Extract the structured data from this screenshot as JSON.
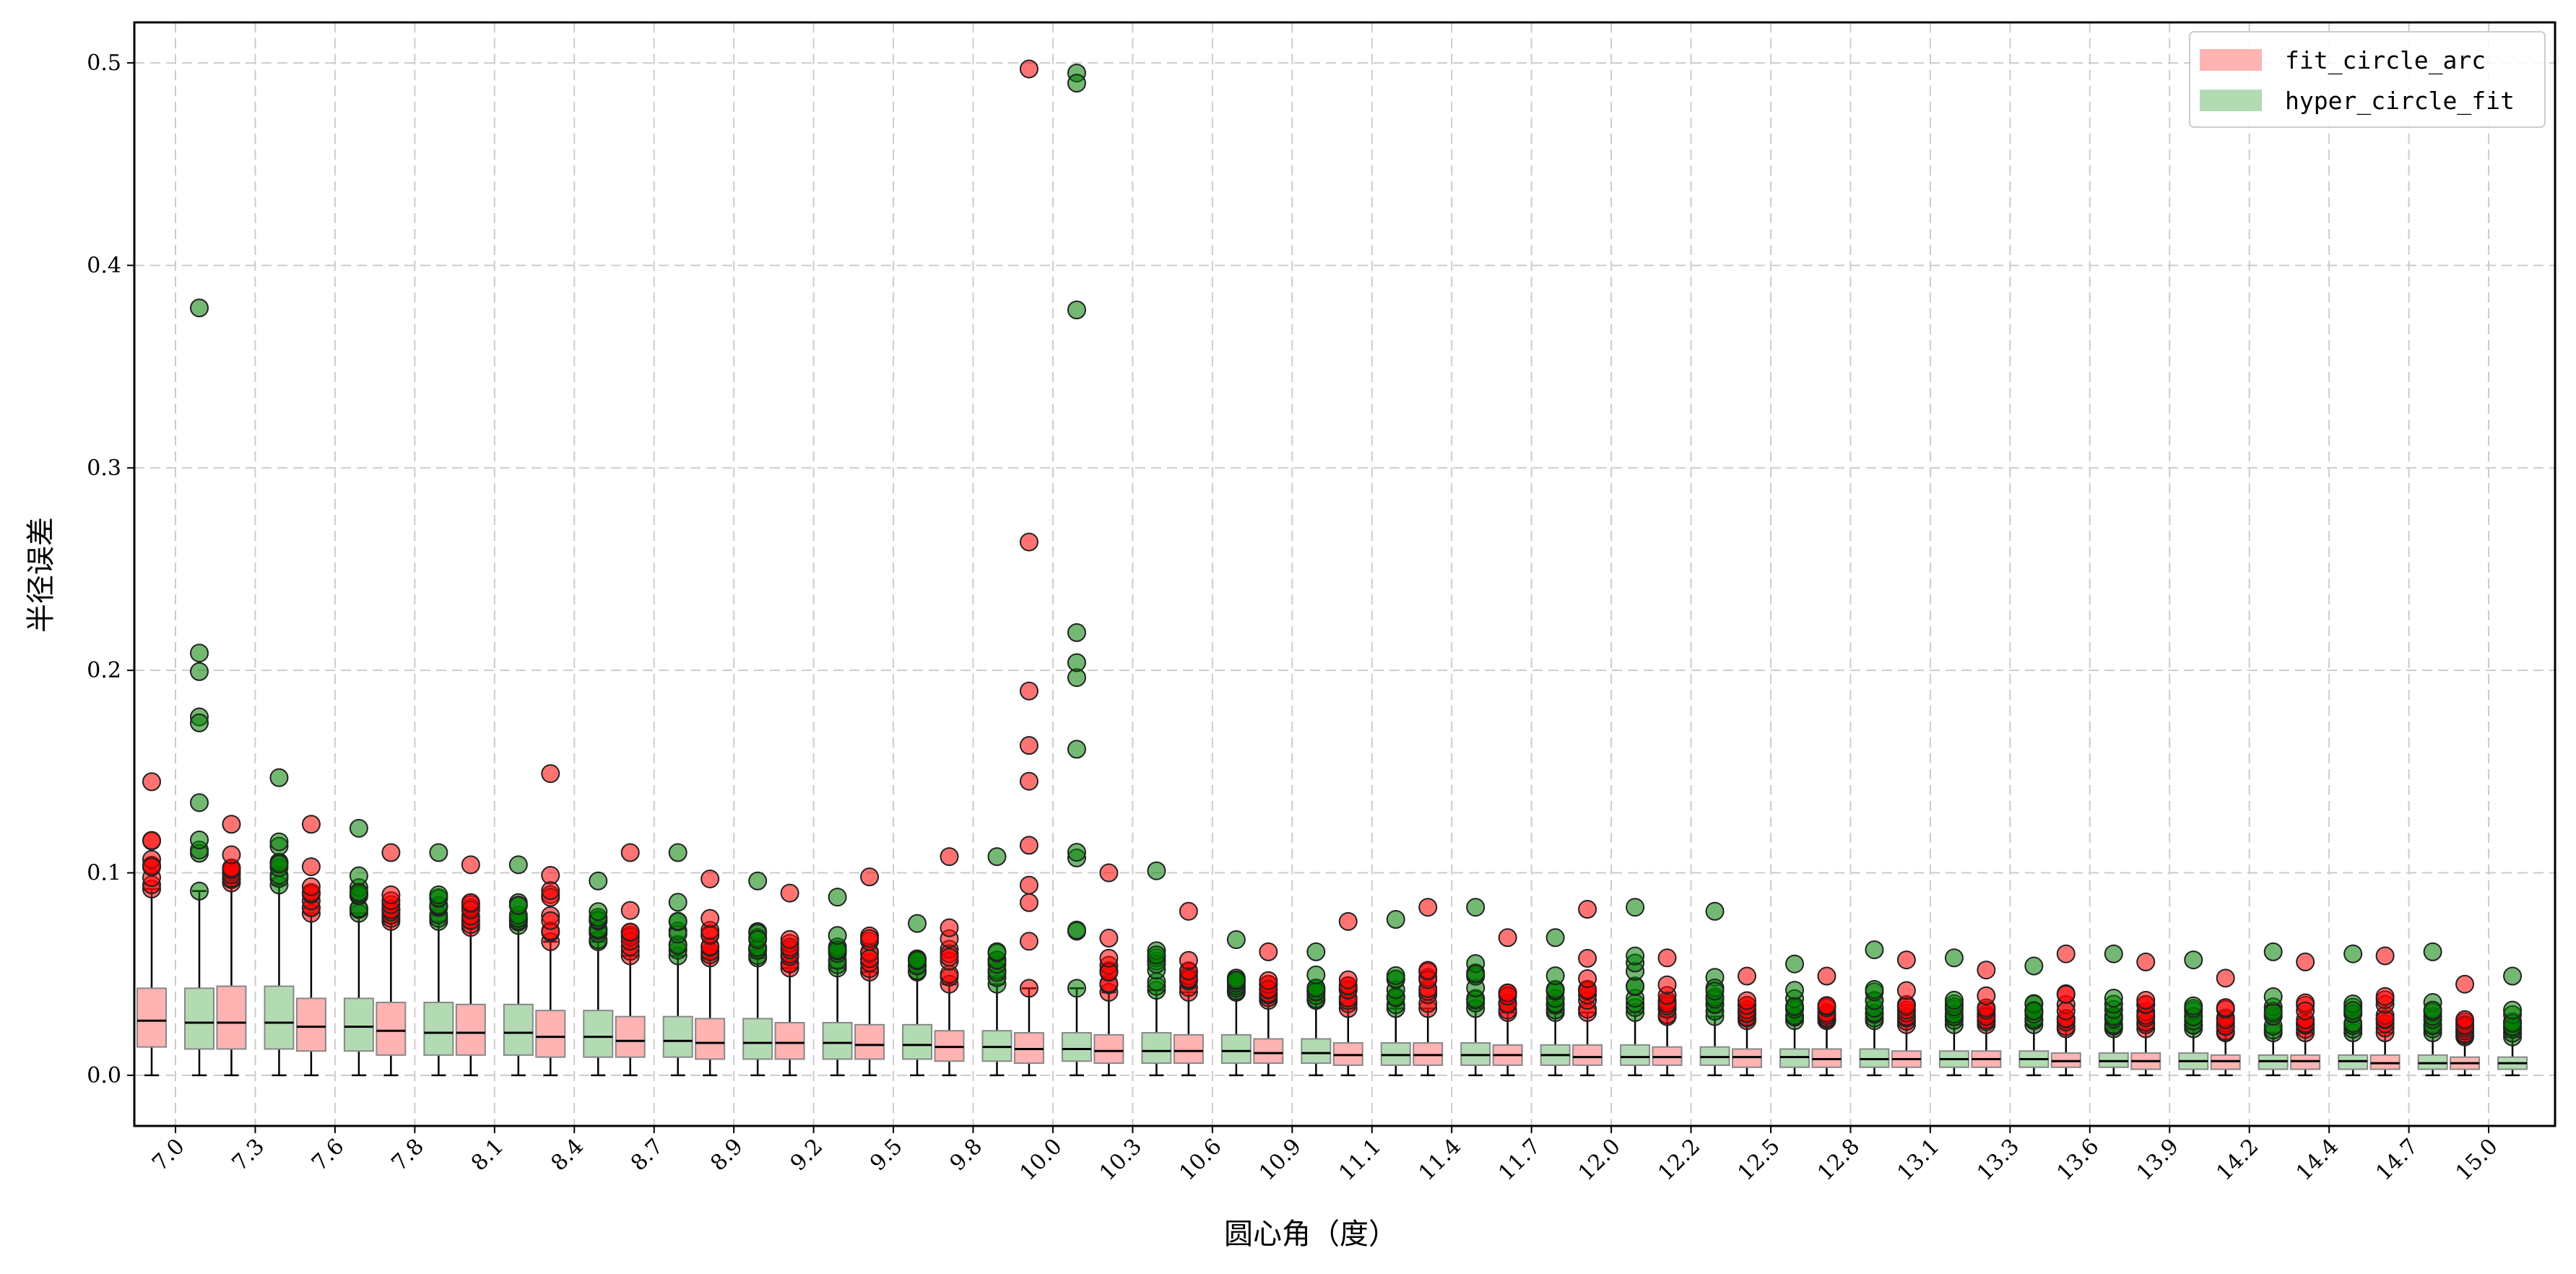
{
  "chart_data": {
    "type": "box",
    "xlabel": "圆心角（度）",
    "ylabel": "半径误差",
    "ylim": [
      -0.025,
      0.52
    ],
    "yticks": [
      0.0,
      0.1,
      0.2,
      0.3,
      0.4,
      0.5
    ],
    "ytick_labels": [
      "0.0",
      "0.1",
      "0.2",
      "0.3",
      "0.4",
      "0.5"
    ],
    "grid": true,
    "legend_position": "top-right",
    "categories": [
      "7.0",
      "7.3",
      "7.6",
      "7.8",
      "8.1",
      "8.4",
      "8.7",
      "8.9",
      "9.2",
      "9.5",
      "9.8",
      "10.0",
      "10.3",
      "10.6",
      "10.9",
      "11.1",
      "11.4",
      "11.7",
      "12.0",
      "12.2",
      "12.5",
      "12.8",
      "13.1",
      "13.3",
      "13.6",
      "13.9",
      "14.2",
      "14.4",
      "14.7",
      "15.0"
    ],
    "series": [
      {
        "name": "fit_circle_arc",
        "box_color": "#ffb3b3",
        "flier_color": "#ff0000",
        "q1": [
          0.014,
          0.013,
          0.012,
          0.01,
          0.01,
          0.009,
          0.009,
          0.008,
          0.008,
          0.008,
          0.007,
          0.006,
          0.006,
          0.006,
          0.006,
          0.005,
          0.005,
          0.005,
          0.005,
          0.005,
          0.004,
          0.004,
          0.004,
          0.004,
          0.004,
          0.003,
          0.003,
          0.003,
          0.003,
          0.003
        ],
        "median": [
          0.027,
          0.026,
          0.024,
          0.022,
          0.021,
          0.019,
          0.017,
          0.016,
          0.016,
          0.015,
          0.014,
          0.013,
          0.012,
          0.012,
          0.011,
          0.01,
          0.01,
          0.01,
          0.009,
          0.009,
          0.009,
          0.008,
          0.008,
          0.008,
          0.007,
          0.007,
          0.007,
          0.007,
          0.006,
          0.006
        ],
        "q3": [
          0.043,
          0.044,
          0.038,
          0.036,
          0.035,
          0.032,
          0.029,
          0.028,
          0.026,
          0.025,
          0.022,
          0.021,
          0.02,
          0.02,
          0.018,
          0.016,
          0.016,
          0.015,
          0.015,
          0.014,
          0.013,
          0.013,
          0.012,
          0.012,
          0.011,
          0.011,
          0.01,
          0.01,
          0.01,
          0.009
        ],
        "whisker_low": [
          0,
          0,
          0,
          0,
          0,
          0,
          0,
          0,
          0,
          0,
          0,
          0,
          0,
          0,
          0,
          0,
          0,
          0,
          0,
          0,
          0,
          0,
          0,
          0,
          0,
          0,
          0,
          0,
          0,
          0
        ],
        "whisker_high": [
          0.092,
          0.095,
          0.08,
          0.076,
          0.073,
          0.066,
          0.059,
          0.058,
          0.053,
          0.051,
          0.045,
          0.043,
          0.041,
          0.041,
          0.037,
          0.033,
          0.033,
          0.031,
          0.031,
          0.029,
          0.027,
          0.027,
          0.025,
          0.025,
          0.023,
          0.023,
          0.021,
          0.021,
          0.021,
          0.019
        ],
        "flier_max": [
          0.145,
          0.124,
          0.124,
          0.11,
          0.104,
          0.149,
          0.11,
          0.097,
          0.09,
          0.098,
          0.108,
          0.497,
          0.1,
          0.081,
          0.061,
          0.076,
          0.083,
          0.068,
          0.082,
          0.058,
          0.049,
          0.049,
          0.057,
          0.052,
          0.06,
          0.056,
          0.048,
          0.056,
          0.059,
          0.045
        ]
      },
      {
        "name": "hyper_circle_fit",
        "box_color": "#b3dbb3",
        "flier_color": "#008000",
        "q1": [
          0.013,
          0.013,
          0.012,
          0.01,
          0.01,
          0.009,
          0.009,
          0.008,
          0.008,
          0.008,
          0.007,
          0.007,
          0.006,
          0.006,
          0.006,
          0.005,
          0.005,
          0.005,
          0.005,
          0.005,
          0.004,
          0.004,
          0.004,
          0.004,
          0.004,
          0.003,
          0.003,
          0.003,
          0.003,
          0.003
        ],
        "median": [
          0.026,
          0.026,
          0.024,
          0.021,
          0.021,
          0.019,
          0.017,
          0.016,
          0.016,
          0.015,
          0.014,
          0.013,
          0.012,
          0.012,
          0.011,
          0.01,
          0.01,
          0.01,
          0.009,
          0.009,
          0.009,
          0.008,
          0.008,
          0.008,
          0.007,
          0.007,
          0.007,
          0.007,
          0.006,
          0.006
        ],
        "q3": [
          0.043,
          0.044,
          0.038,
          0.036,
          0.035,
          0.032,
          0.029,
          0.028,
          0.026,
          0.025,
          0.022,
          0.021,
          0.021,
          0.02,
          0.018,
          0.016,
          0.016,
          0.015,
          0.015,
          0.014,
          0.013,
          0.013,
          0.012,
          0.012,
          0.011,
          0.011,
          0.01,
          0.01,
          0.01,
          0.009
        ],
        "whisker_low": [
          0,
          0,
          0,
          0,
          0,
          0,
          0,
          0,
          0,
          0,
          0,
          0,
          0,
          0,
          0,
          0,
          0,
          0,
          0,
          0,
          0,
          0,
          0,
          0,
          0,
          0,
          0,
          0,
          0,
          0
        ],
        "whisker_high": [
          0.091,
          0.094,
          0.08,
          0.076,
          0.074,
          0.066,
          0.059,
          0.058,
          0.053,
          0.051,
          0.045,
          0.043,
          0.042,
          0.041,
          0.037,
          0.033,
          0.033,
          0.031,
          0.031,
          0.029,
          0.027,
          0.027,
          0.025,
          0.025,
          0.023,
          0.023,
          0.021,
          0.021,
          0.021,
          0.019
        ],
        "flier_max": [
          0.379,
          0.147,
          0.122,
          0.11,
          0.104,
          0.096,
          0.11,
          0.096,
          0.088,
          0.075,
          0.108,
          0.495,
          0.101,
          0.067,
          0.061,
          0.077,
          0.083,
          0.068,
          0.083,
          0.081,
          0.055,
          0.062,
          0.058,
          0.054,
          0.06,
          0.057,
          0.061,
          0.06,
          0.061,
          0.049
        ],
        "extra_fliers": [
          [
            11,
            0.49
          ],
          [
            11,
            0.378
          ]
        ]
      }
    ]
  }
}
